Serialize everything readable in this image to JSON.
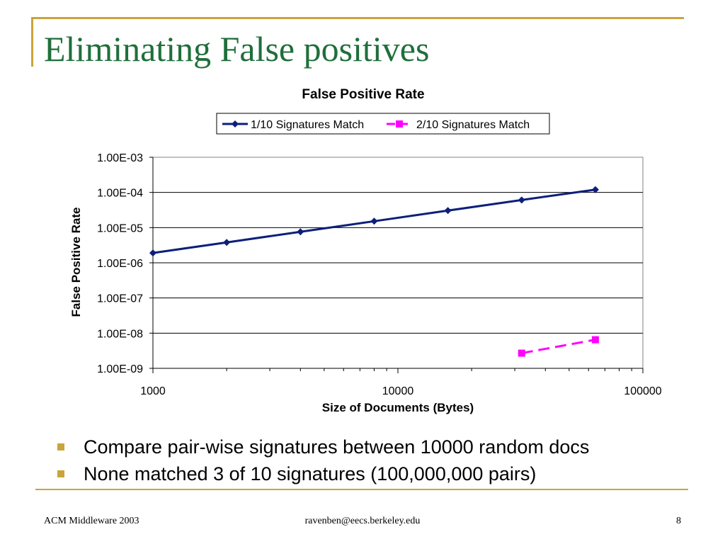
{
  "slide": {
    "title": "Eliminating False positives",
    "bullets": [
      "Compare pair-wise signatures between 10000 random docs",
      "None matched 3 of 10 signatures (100,000,000 pairs)"
    ],
    "footer": {
      "left": "ACM Middleware 2003",
      "center": "ravenben@eecs.berkeley.edu",
      "right": "8"
    }
  },
  "colors": {
    "accent": "#c9a43a",
    "title": "#1f6f3a",
    "series1": "#0d1f7a",
    "series2": "#ff00ff"
  },
  "chart_data": {
    "type": "line",
    "title": "False Positive Rate",
    "xlabel": "Size of Documents (Bytes)",
    "ylabel": "False Positive Rate",
    "x_scale": "log",
    "y_scale": "log",
    "xlim": [
      1000,
      100000
    ],
    "ylim": [
      1e-09,
      0.001
    ],
    "x_ticks": [
      {
        "value": 1000,
        "label": "1000"
      },
      {
        "value": 10000,
        "label": "10000"
      },
      {
        "value": 100000,
        "label": "100000"
      }
    ],
    "y_ticks": [
      {
        "value": 0.001,
        "label": "1.00E-03"
      },
      {
        "value": 0.0001,
        "label": "1.00E-04"
      },
      {
        "value": 1e-05,
        "label": "1.00E-05"
      },
      {
        "value": 1e-06,
        "label": "1.00E-06"
      },
      {
        "value": 1e-07,
        "label": "1.00E-07"
      },
      {
        "value": 1e-08,
        "label": "1.00E-08"
      },
      {
        "value": 1e-09,
        "label": "1.00E-09"
      }
    ],
    "grid": "horizontal",
    "legend": "top",
    "series": [
      {
        "name": "1/10 Signatures Match",
        "color": "#0d1f7a",
        "marker": "diamond",
        "dash": "solid",
        "points": [
          {
            "x": 1000,
            "y": 1.9e-06
          },
          {
            "x": 2000,
            "y": 3.8e-06
          },
          {
            "x": 4000,
            "y": 7.6e-06
          },
          {
            "x": 8000,
            "y": 1.52e-05
          },
          {
            "x": 16000,
            "y": 3.05e-05
          },
          {
            "x": 32000,
            "y": 6.1e-05
          },
          {
            "x": 64000,
            "y": 0.00012
          }
        ]
      },
      {
        "name": "2/10 Signatures Match",
        "color": "#ff00ff",
        "marker": "square",
        "dash": "dashed",
        "points": [
          {
            "x": 32000,
            "y": 2.7e-09
          },
          {
            "x": 64000,
            "y": 6.5e-09
          }
        ]
      }
    ]
  }
}
